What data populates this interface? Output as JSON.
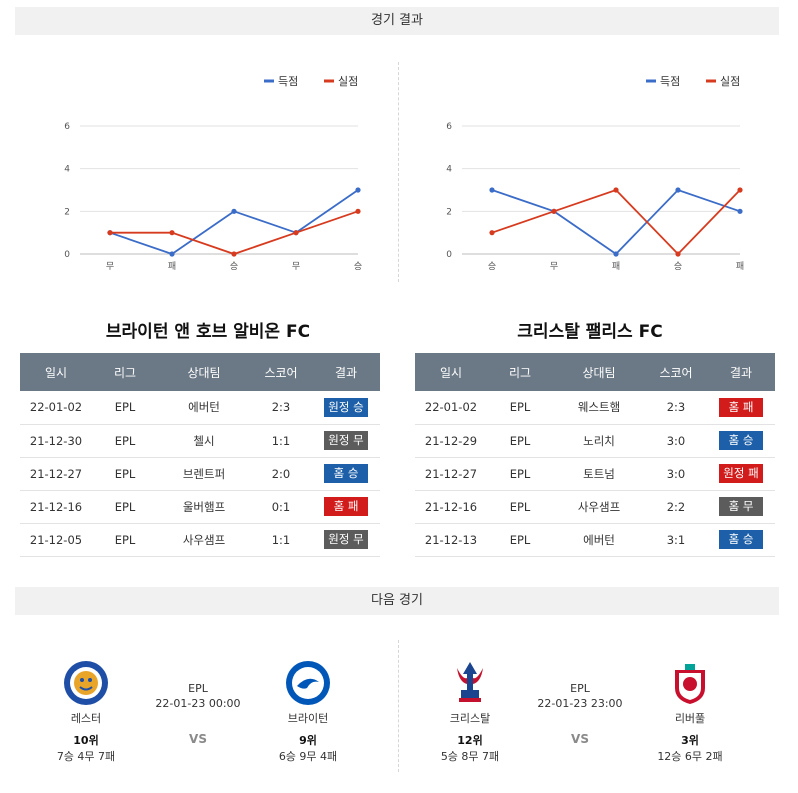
{
  "sections": {
    "results_title": "경기 결과",
    "next_title": "다음 경기"
  },
  "legend": {
    "scored": "득점",
    "conceded": "실점"
  },
  "colors": {
    "scored": "#3b6cc8",
    "conceded": "#d73b1f",
    "win": "#1d5fa8",
    "draw": "#5c5c5c",
    "loss": "#d21b1b"
  },
  "chart_data": [
    {
      "type": "line",
      "categories": [
        "무",
        "패",
        "승",
        "무",
        "승"
      ],
      "series": [
        {
          "name": "득점",
          "values": [
            1,
            0,
            2,
            1,
            3
          ]
        },
        {
          "name": "실점",
          "values": [
            1,
            1,
            0,
            1,
            2
          ]
        }
      ],
      "yticks": [
        0,
        2,
        4,
        6
      ],
      "ylim": [
        0,
        6
      ],
      "grid": true,
      "legend_position": "top-right"
    },
    {
      "type": "line",
      "categories": [
        "승",
        "무",
        "패",
        "승",
        "패"
      ],
      "series": [
        {
          "name": "득점",
          "values": [
            3,
            2,
            0,
            3,
            2
          ]
        },
        {
          "name": "실점",
          "values": [
            1,
            2,
            3,
            0,
            3
          ]
        }
      ],
      "yticks": [
        0,
        2,
        4,
        6
      ],
      "ylim": [
        0,
        6
      ],
      "grid": true,
      "legend_position": "top-right"
    }
  ],
  "table_headers": [
    "일시",
    "리그",
    "상대팀",
    "스코어",
    "결과"
  ],
  "teams": [
    {
      "name": "브라이턴 앤 호브 알비온 FC",
      "matches": [
        {
          "date": "22-01-02",
          "league": "EPL",
          "opponent": "에버턴",
          "score": "2:3",
          "result": "원정 승",
          "type": "win"
        },
        {
          "date": "21-12-30",
          "league": "EPL",
          "opponent": "첼시",
          "score": "1:1",
          "result": "원정 무",
          "type": "draw"
        },
        {
          "date": "21-12-27",
          "league": "EPL",
          "opponent": "브렌트퍼",
          "score": "2:0",
          "result": "홈 승",
          "type": "win"
        },
        {
          "date": "21-12-16",
          "league": "EPL",
          "opponent": "울버햄프",
          "score": "0:1",
          "result": "홈 패",
          "type": "loss"
        },
        {
          "date": "21-12-05",
          "league": "EPL",
          "opponent": "사우샘프",
          "score": "1:1",
          "result": "원정 무",
          "type": "draw"
        }
      ]
    },
    {
      "name": "크리스탈 팰리스 FC",
      "matches": [
        {
          "date": "22-01-02",
          "league": "EPL",
          "opponent": "웨스트햄",
          "score": "2:3",
          "result": "홈 패",
          "type": "loss"
        },
        {
          "date": "21-12-29",
          "league": "EPL",
          "opponent": "노리치",
          "score": "3:0",
          "result": "홈 승",
          "type": "win"
        },
        {
          "date": "21-12-27",
          "league": "EPL",
          "opponent": "토트넘",
          "score": "3:0",
          "result": "원정 패",
          "type": "loss"
        },
        {
          "date": "21-12-16",
          "league": "EPL",
          "opponent": "사우샘프",
          "score": "2:2",
          "result": "홈 무",
          "type": "draw"
        },
        {
          "date": "21-12-13",
          "league": "EPL",
          "opponent": "에버턴",
          "score": "3:1",
          "result": "홈 승",
          "type": "win"
        }
      ]
    }
  ],
  "next_matches": [
    {
      "league": "EPL",
      "datetime": "22-01-23 00:00",
      "vs": "VS",
      "home": {
        "name": "레스터",
        "rank": "10위",
        "record": "7승 4무 7패",
        "logo": "leicester-logo"
      },
      "away": {
        "name": "브라이턴",
        "rank": "9위",
        "record": "6승 9무 4패",
        "logo": "brighton-logo"
      }
    },
    {
      "league": "EPL",
      "datetime": "22-01-23 23:00",
      "vs": "VS",
      "home": {
        "name": "크리스탈",
        "rank": "12위",
        "record": "5승 8무 7패",
        "logo": "crystal-palace-logo"
      },
      "away": {
        "name": "리버풀",
        "rank": "3위",
        "record": "12승 6무 2패",
        "logo": "liverpool-logo"
      }
    }
  ]
}
